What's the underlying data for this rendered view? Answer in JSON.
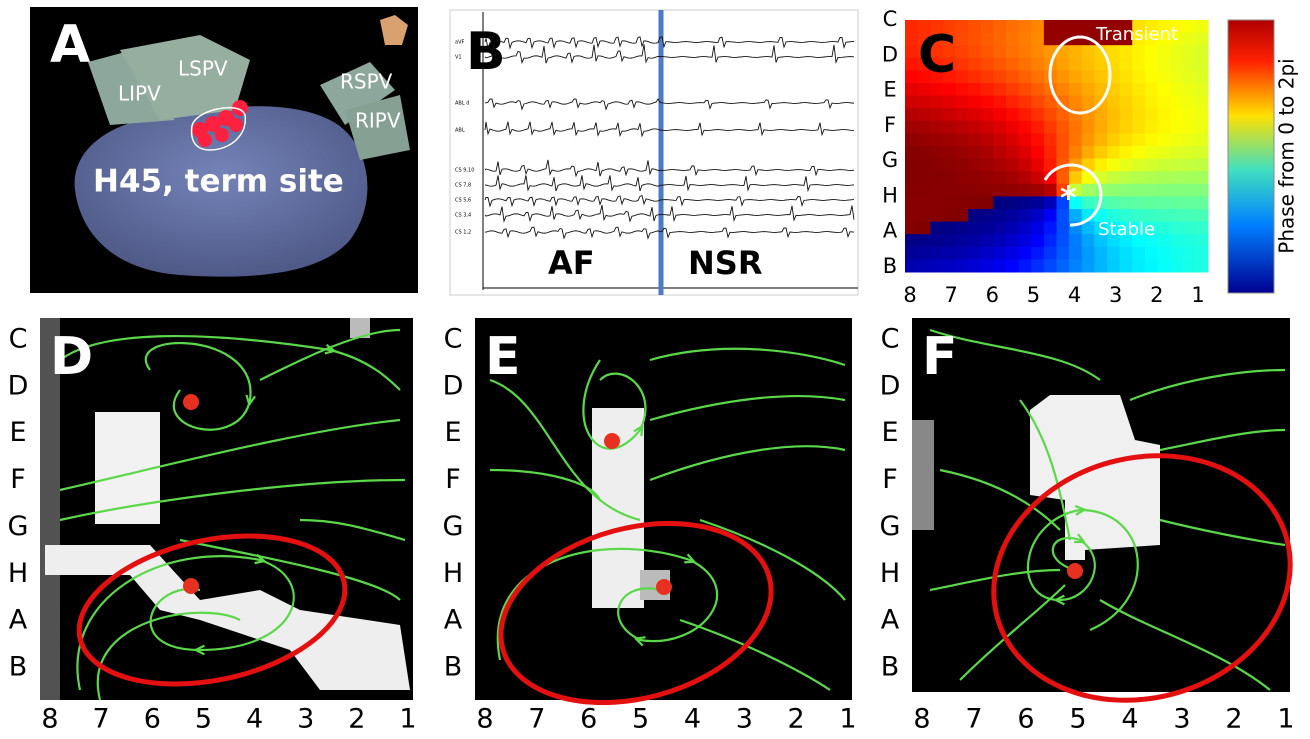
{
  "panel_a": {
    "letter": "A",
    "vein_labels": [
      "LIPV",
      "LSPV",
      "RSPV",
      "RIPV"
    ],
    "site": "H45, term site"
  },
  "panel_b": {
    "letter": "B",
    "leads": [
      "aVF",
      "V1",
      "ABL d",
      "ABL",
      "CS 9,10",
      "CS 7,8",
      "CS 5,6",
      "CS 3,4",
      "CS 1,2"
    ],
    "rhythms": [
      "AF",
      "NSR"
    ]
  },
  "panel_c": {
    "letter": "C",
    "annotations": [
      "Transient",
      "Stable"
    ],
    "marker": "*",
    "colorbar_label": "Phase from 0 to 2pi"
  },
  "panels_def": [
    "D",
    "E",
    "F"
  ],
  "grid": {
    "rows": [
      "C",
      "D",
      "E",
      "F",
      "G",
      "H",
      "A",
      "B"
    ],
    "columns": [
      "8",
      "7",
      "6",
      "5",
      "4",
      "3",
      "2",
      "1"
    ]
  }
}
